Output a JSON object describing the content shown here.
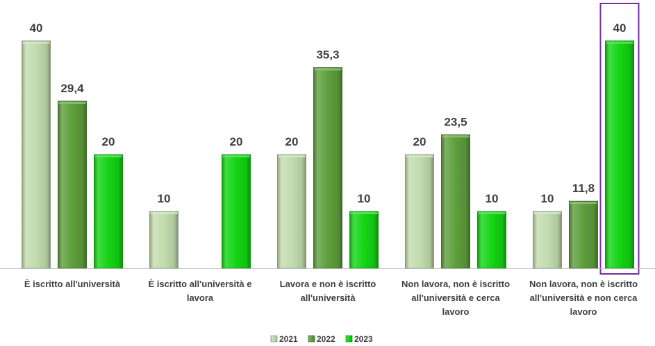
{
  "chart_data": {
    "type": "bar",
    "title": "",
    "xlabel": "",
    "ylabel": "",
    "ylim": [
      0,
      40
    ],
    "grid": false,
    "legend_position": "bottom",
    "categories": [
      [
        "È iscritto all'università"
      ],
      [
        "È iscritto all'università e",
        "lavora"
      ],
      [
        "Lavora e non è iscritto",
        "all'università"
      ],
      [
        "Non lavora, non è iscritto",
        "all'università e cerca",
        "lavoro"
      ],
      [
        "Non lavora, non è iscritto",
        "all'università e non cerca",
        "lavoro"
      ]
    ],
    "series": [
      {
        "name": "2021",
        "color": "#c3dcae",
        "values": [
          40,
          10,
          20,
          20,
          10
        ],
        "labels": [
          "40",
          "10",
          "20",
          "20",
          "10"
        ]
      },
      {
        "name": "2022",
        "color": "#5e9e3c",
        "values": [
          29.4,
          0,
          35.3,
          23.5,
          11.8
        ],
        "labels": [
          "29,4",
          "",
          "35,3",
          "23,5",
          "11,8"
        ]
      },
      {
        "name": "2023",
        "color": "#14d414",
        "values": [
          20,
          20,
          10,
          10,
          40
        ],
        "labels": [
          "20",
          "20",
          "10",
          "10",
          "40"
        ]
      }
    ],
    "highlight": {
      "series": 2,
      "category": 4,
      "color": "#7030a0"
    }
  }
}
